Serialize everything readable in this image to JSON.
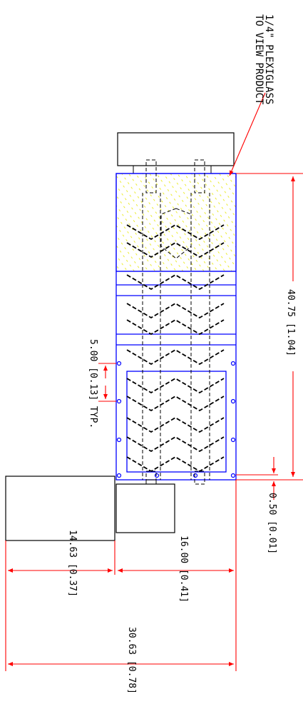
{
  "drawing": {
    "note_line1": "1/4\" PLEXIGLASS",
    "note_line2": "TO VIEW PRODUCT",
    "dims": {
      "overall_length": "40.75 [1.04]",
      "pitch": "5.00 [0.13] TYP.",
      "offset": "0.50 [0.01]",
      "width_a": "14.63 [0.37]",
      "width_b": "16.00 [0.41]",
      "width_total": "30.63 [0.78]"
    },
    "colors": {
      "frame": "#0000ff",
      "dimension": "#ff0000",
      "plexiglass_hatch": "#ffff00",
      "line": "#000000"
    }
  }
}
